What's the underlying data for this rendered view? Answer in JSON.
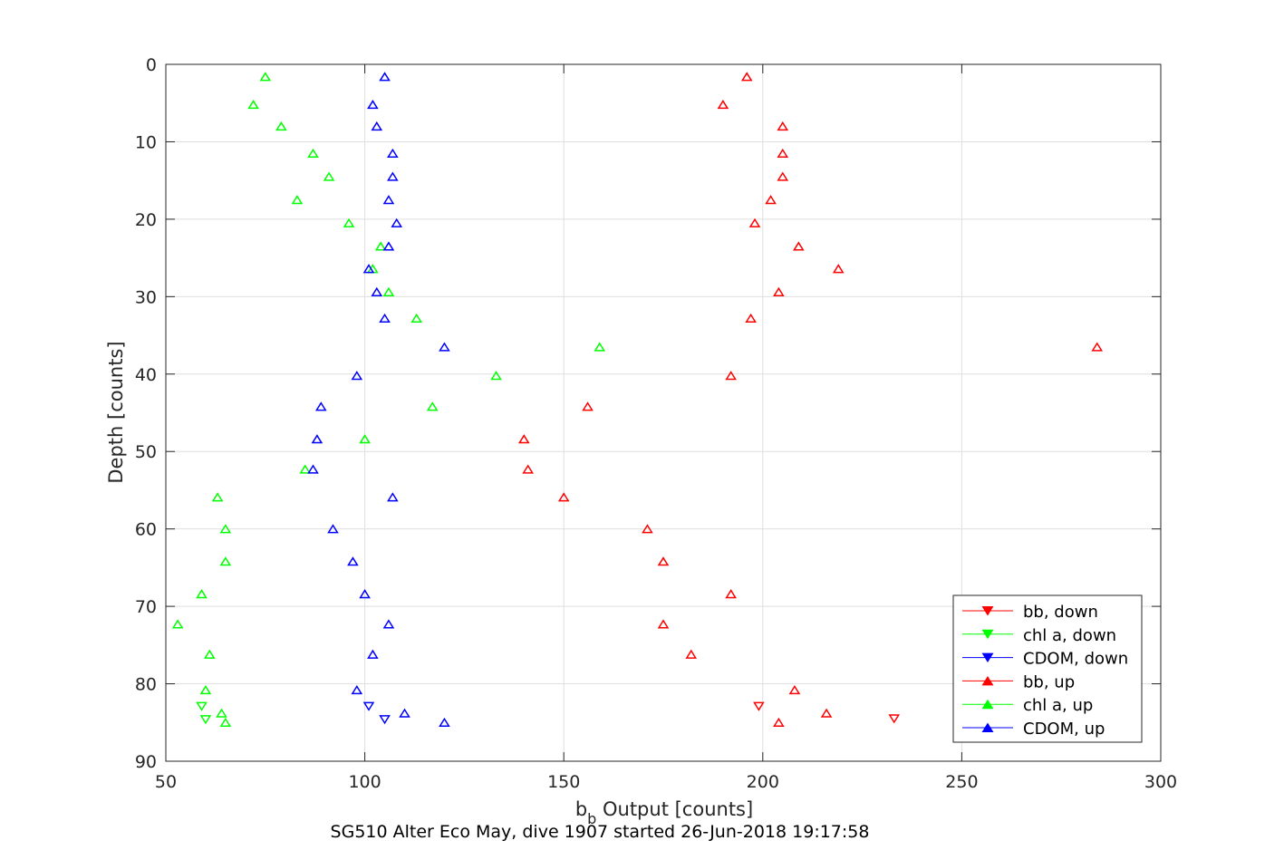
{
  "chart_data": {
    "type": "scatter",
    "xlabel_main": "b",
    "xlabel_sub": "b",
    "xlabel_rest": " Output [counts]",
    "ylabel": "Depth [counts]",
    "subtitle": "SG510 Alter Eco May, dive 1907 started 26-Jun-2018 19:17:58",
    "xlim": [
      50,
      300
    ],
    "ylim": [
      0,
      90
    ],
    "y_reversed": true,
    "grid": true,
    "xticks": [
      50,
      100,
      150,
      200,
      250,
      300
    ],
    "yticks": [
      0,
      10,
      20,
      30,
      40,
      50,
      60,
      70,
      80,
      90
    ],
    "legend_position": "bottom-right",
    "series": [
      {
        "name": "bb, down",
        "color": "#ff0000",
        "marker": "triangle-down",
        "points": [
          [
            199,
            82.9
          ],
          [
            233,
            84.5
          ]
        ]
      },
      {
        "name": "chl a, down",
        "color": "#00ff00",
        "marker": "triangle-down",
        "points": [
          [
            59,
            82.9
          ],
          [
            60,
            84.6
          ]
        ]
      },
      {
        "name": "CDOM, down",
        "color": "#0000ff",
        "marker": "triangle-down",
        "points": [
          [
            101,
            82.9
          ],
          [
            105,
            84.6
          ]
        ]
      },
      {
        "name": "bb, up",
        "color": "#ff0000",
        "marker": "triangle-up",
        "points": [
          [
            196,
            1.6
          ],
          [
            190,
            5.2
          ],
          [
            205,
            8.0
          ],
          [
            205,
            11.5
          ],
          [
            205,
            14.5
          ],
          [
            202,
            17.5
          ],
          [
            198,
            20.5
          ],
          [
            209,
            23.5
          ],
          [
            219,
            26.4
          ],
          [
            204,
            29.4
          ],
          [
            197,
            32.8
          ],
          [
            284,
            36.5
          ],
          [
            192,
            40.2
          ],
          [
            156,
            44.2
          ],
          [
            140,
            48.4
          ],
          [
            141,
            52.3
          ],
          [
            150,
            55.9
          ],
          [
            171,
            60.0
          ],
          [
            175,
            64.2
          ],
          [
            192,
            68.4
          ],
          [
            175,
            72.3
          ],
          [
            182,
            76.2
          ],
          [
            208,
            80.8
          ],
          [
            216,
            83.8
          ],
          [
            204,
            85.0
          ]
        ]
      },
      {
        "name": "chl a, up",
        "color": "#00ff00",
        "marker": "triangle-up",
        "points": [
          [
            75,
            1.6
          ],
          [
            72,
            5.2
          ],
          [
            79,
            8.0
          ],
          [
            87,
            11.5
          ],
          [
            91,
            14.5
          ],
          [
            83,
            17.5
          ],
          [
            96,
            20.5
          ],
          [
            104,
            23.5
          ],
          [
            102,
            26.4
          ],
          [
            106,
            29.4
          ],
          [
            113,
            32.8
          ],
          [
            159,
            36.5
          ],
          [
            133,
            40.2
          ],
          [
            117,
            44.2
          ],
          [
            100,
            48.4
          ],
          [
            85,
            52.3
          ],
          [
            63,
            55.9
          ],
          [
            65,
            60.0
          ],
          [
            65,
            64.2
          ],
          [
            59,
            68.4
          ],
          [
            53,
            72.3
          ],
          [
            61,
            76.2
          ],
          [
            60,
            80.8
          ],
          [
            64,
            83.8
          ],
          [
            65,
            85.0
          ]
        ]
      },
      {
        "name": "CDOM, up",
        "color": "#0000ff",
        "marker": "triangle-up",
        "points": [
          [
            105,
            1.6
          ],
          [
            102,
            5.2
          ],
          [
            103,
            8.0
          ],
          [
            107,
            11.5
          ],
          [
            107,
            14.5
          ],
          [
            106,
            17.5
          ],
          [
            108,
            20.5
          ],
          [
            106,
            23.5
          ],
          [
            101,
            26.4
          ],
          [
            103,
            29.4
          ],
          [
            105,
            32.8
          ],
          [
            120,
            36.5
          ],
          [
            98,
            40.2
          ],
          [
            89,
            44.2
          ],
          [
            88,
            48.4
          ],
          [
            87,
            52.3
          ],
          [
            107,
            55.9
          ],
          [
            92,
            60.0
          ],
          [
            97,
            64.2
          ],
          [
            100,
            68.4
          ],
          [
            106,
            72.3
          ],
          [
            102,
            76.2
          ],
          [
            98,
            80.8
          ],
          [
            110,
            83.8
          ],
          [
            120,
            85.0
          ]
        ]
      }
    ]
  }
}
